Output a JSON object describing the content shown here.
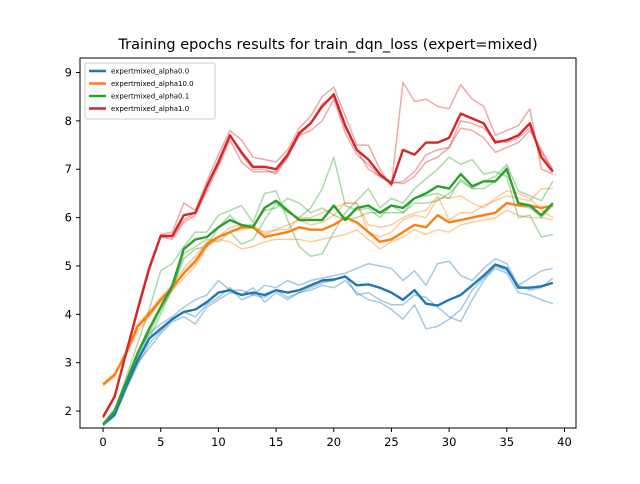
{
  "chart_data": {
    "type": "line",
    "title": "Training epochs results for train_dqn_loss (expert=mixed)",
    "xlabel": "",
    "ylabel": "",
    "xlim": [
      -2,
      41
    ],
    "ylim": [
      1.65,
      9.3
    ],
    "xticks": [
      0,
      5,
      10,
      15,
      20,
      25,
      30,
      35,
      40
    ],
    "yticks": [
      2,
      3,
      4,
      5,
      6,
      7,
      8,
      9
    ],
    "legend_position": "top-left",
    "grid": false,
    "x": [
      0,
      1,
      2,
      3,
      4,
      5,
      6,
      7,
      8,
      9,
      10,
      11,
      12,
      13,
      14,
      15,
      16,
      17,
      18,
      19,
      20,
      21,
      22,
      23,
      24,
      25,
      26,
      27,
      28,
      29,
      30,
      31,
      32,
      33,
      34,
      35,
      36,
      37,
      38,
      39
    ],
    "series": [
      {
        "name": "expertmixed_alpha0.0",
        "color": "#1f77b4",
        "values": [
          1.72,
          1.92,
          2.5,
          3.05,
          3.5,
          3.7,
          3.9,
          4.05,
          4.1,
          4.25,
          4.45,
          4.5,
          4.4,
          4.45,
          4.4,
          4.5,
          4.45,
          4.5,
          4.6,
          4.7,
          4.72,
          4.78,
          4.6,
          4.62,
          4.55,
          4.45,
          4.3,
          4.5,
          4.22,
          4.18,
          4.3,
          4.4,
          4.6,
          4.8,
          5.03,
          4.95,
          4.55,
          4.55,
          4.58,
          4.65
        ],
        "faint": [
          [
            1.75,
            1.95,
            2.55,
            3.2,
            3.6,
            3.8,
            3.95,
            4.15,
            4.3,
            4.4,
            4.7,
            4.5,
            4.5,
            4.4,
            4.6,
            4.55,
            4.7,
            4.6,
            4.7,
            4.75,
            4.8,
            4.85,
            4.95,
            5.05,
            5.0,
            4.95,
            4.7,
            4.9,
            4.6,
            5.05,
            5.1,
            4.8,
            4.7,
            4.95,
            5.15,
            5.05,
            4.6,
            4.75,
            4.9,
            4.95
          ],
          [
            1.7,
            1.9,
            2.45,
            2.95,
            3.4,
            3.65,
            3.9,
            4.05,
            3.95,
            4.2,
            4.35,
            4.55,
            4.3,
            4.4,
            4.35,
            4.5,
            4.35,
            4.45,
            4.5,
            4.6,
            4.55,
            4.7,
            4.45,
            4.3,
            4.25,
            4.1,
            3.9,
            4.2,
            3.7,
            3.75,
            3.9,
            4.1,
            4.5,
            4.75,
            4.95,
            4.85,
            4.45,
            4.4,
            4.3,
            4.22
          ],
          [
            1.72,
            1.92,
            2.5,
            3.0,
            3.3,
            3.6,
            3.85,
            3.95,
            3.8,
            4.15,
            4.3,
            4.45,
            4.4,
            4.55,
            4.25,
            4.45,
            4.3,
            4.45,
            4.55,
            4.65,
            4.7,
            4.8,
            4.4,
            4.45,
            4.3,
            4.2,
            4.2,
            4.4,
            4.35,
            4.15,
            3.95,
            3.85,
            4.3,
            4.7,
            5.0,
            4.9,
            4.6,
            4.5,
            4.55,
            4.75
          ]
        ]
      },
      {
        "name": "expertmixed_alpha10.0",
        "color": "#ff7f0e",
        "values": [
          2.55,
          2.75,
          3.2,
          3.75,
          4.0,
          4.3,
          4.55,
          4.85,
          5.1,
          5.45,
          5.6,
          5.7,
          5.8,
          5.8,
          5.6,
          5.65,
          5.7,
          5.8,
          5.75,
          5.75,
          5.85,
          6.0,
          5.9,
          5.7,
          5.5,
          5.55,
          5.7,
          5.85,
          5.8,
          6.05,
          5.9,
          5.95,
          6.0,
          6.05,
          6.1,
          6.3,
          6.25,
          6.25,
          6.2,
          6.25
        ],
        "faint": [
          [
            2.52,
            2.72,
            3.25,
            3.8,
            4.05,
            4.35,
            4.6,
            4.95,
            5.2,
            5.5,
            5.6,
            5.8,
            5.85,
            5.85,
            5.65,
            5.75,
            5.75,
            6.0,
            6.0,
            6.1,
            6.2,
            6.3,
            6.3,
            5.7,
            5.6,
            5.7,
            5.95,
            6.05,
            6.0,
            6.4,
            6.4,
            6.45,
            6.3,
            6.2,
            6.4,
            6.55,
            6.5,
            6.4,
            6.15,
            6.0
          ],
          [
            2.57,
            2.78,
            3.15,
            3.65,
            3.95,
            4.25,
            4.5,
            4.75,
            5.0,
            5.4,
            5.55,
            5.5,
            5.35,
            5.4,
            5.5,
            5.55,
            5.55,
            5.55,
            5.5,
            5.55,
            5.6,
            5.65,
            5.75,
            5.55,
            5.35,
            5.5,
            5.6,
            5.75,
            5.65,
            5.75,
            5.7,
            5.85,
            5.9,
            5.95,
            6.0,
            6.15,
            6.05,
            6.0,
            6.0,
            5.95
          ],
          [
            2.55,
            2.75,
            3.2,
            3.75,
            4.05,
            4.3,
            4.55,
            4.85,
            5.05,
            5.4,
            5.6,
            5.7,
            5.75,
            5.8,
            5.7,
            5.75,
            5.85,
            5.95,
            5.85,
            5.9,
            6.05,
            6.3,
            6.3,
            5.85,
            5.8,
            5.85,
            6.0,
            6.1,
            6.15,
            6.45,
            5.95,
            6.1,
            6.1,
            6.25,
            6.35,
            6.45,
            6.4,
            6.35,
            6.6,
            6.6
          ]
        ]
      },
      {
        "name": "expertmixed_alpha0.1",
        "color": "#2ca02c",
        "values": [
          1.72,
          2.0,
          2.6,
          3.2,
          3.7,
          4.15,
          4.6,
          5.35,
          5.55,
          5.6,
          5.8,
          5.95,
          5.85,
          5.8,
          6.2,
          6.35,
          6.15,
          5.95,
          5.95,
          5.95,
          6.25,
          5.95,
          6.2,
          6.25,
          6.1,
          6.25,
          6.2,
          6.4,
          6.5,
          6.65,
          6.6,
          6.9,
          6.65,
          6.75,
          6.75,
          7.0,
          6.3,
          6.25,
          6.05,
          6.3
        ],
        "faint": [
          [
            1.7,
            2.0,
            2.7,
            3.4,
            4.1,
            4.9,
            5.05,
            5.4,
            5.7,
            5.7,
            6.05,
            6.15,
            6.25,
            5.9,
            6.5,
            6.55,
            5.95,
            5.4,
            5.2,
            5.25,
            5.7,
            6.1,
            6.35,
            6.6,
            6.2,
            6.4,
            6.3,
            6.6,
            6.8,
            7.0,
            7.25,
            7.1,
            7.2,
            6.9,
            6.95,
            6.85,
            6.0,
            6.05,
            5.6,
            5.65
          ],
          [
            1.75,
            2.05,
            2.6,
            3.15,
            3.6,
            4.1,
            4.5,
            5.25,
            5.4,
            5.55,
            5.5,
            5.7,
            5.45,
            5.55,
            5.95,
            6.3,
            6.1,
            6.0,
            6.2,
            6.6,
            7.25,
            6.25,
            6.15,
            6.2,
            6.0,
            6.25,
            6.1,
            6.4,
            6.45,
            6.5,
            6.4,
            6.8,
            6.6,
            6.75,
            6.85,
            7.1,
            6.55,
            6.45,
            6.35,
            6.75
          ],
          [
            1.72,
            1.98,
            2.55,
            3.1,
            3.5,
            4.0,
            4.55,
            5.15,
            5.35,
            5.4,
            5.8,
            6.05,
            5.8,
            5.85,
            6.15,
            6.2,
            6.4,
            6.3,
            6.1,
            6.2,
            6.05,
            5.95,
            6.0,
            6.1,
            6.1,
            6.1,
            6.1,
            6.3,
            6.3,
            6.35,
            6.5,
            6.75,
            6.6,
            6.6,
            6.75,
            7.05,
            6.25,
            6.2,
            6.0,
            6.25
          ]
        ]
      },
      {
        "name": "expertmixed_alpha1.0",
        "color": "#d62728",
        "values": [
          1.88,
          2.3,
          3.2,
          4.1,
          4.95,
          5.62,
          5.62,
          6.05,
          6.1,
          6.65,
          7.15,
          7.7,
          7.35,
          7.05,
          7.05,
          7.0,
          7.3,
          7.75,
          7.95,
          8.3,
          8.55,
          7.9,
          7.4,
          7.2,
          6.9,
          6.7,
          7.4,
          7.3,
          7.55,
          7.55,
          7.65,
          8.15,
          8.05,
          7.95,
          7.55,
          7.6,
          7.7,
          7.95,
          7.25,
          6.95
        ],
        "faint": [
          [
            1.85,
            2.28,
            3.18,
            4.1,
            4.95,
            5.65,
            5.7,
            6.3,
            6.15,
            6.75,
            7.3,
            7.8,
            7.6,
            7.25,
            7.2,
            7.15,
            7.4,
            7.85,
            8.1,
            8.5,
            8.7,
            8.1,
            7.5,
            7.5,
            7.0,
            6.65,
            8.8,
            8.4,
            8.45,
            8.3,
            8.25,
            8.75,
            8.45,
            8.3,
            7.7,
            7.8,
            7.9,
            8.25,
            7.0,
            6.9
          ],
          [
            1.9,
            2.32,
            3.2,
            4.05,
            4.9,
            5.6,
            5.55,
            5.9,
            6.05,
            6.55,
            7.05,
            7.6,
            7.15,
            6.95,
            6.95,
            6.95,
            7.25,
            7.7,
            7.8,
            8.0,
            8.45,
            7.75,
            7.3,
            7.1,
            6.85,
            6.75,
            6.7,
            6.85,
            7.15,
            7.25,
            7.45,
            7.85,
            7.8,
            7.65,
            7.35,
            7.45,
            7.55,
            7.8,
            7.35,
            6.95
          ],
          [
            1.88,
            2.3,
            3.22,
            4.15,
            5.0,
            5.62,
            5.6,
            5.95,
            6.1,
            6.65,
            7.1,
            7.7,
            7.3,
            7.0,
            7.0,
            6.9,
            7.25,
            7.7,
            7.95,
            8.35,
            8.5,
            7.85,
            7.4,
            7.0,
            6.85,
            6.7,
            6.75,
            6.95,
            7.3,
            7.4,
            7.45,
            8.0,
            7.95,
            7.85,
            7.6,
            7.55,
            7.65,
            7.85,
            7.4,
            7.0
          ]
        ]
      }
    ]
  }
}
